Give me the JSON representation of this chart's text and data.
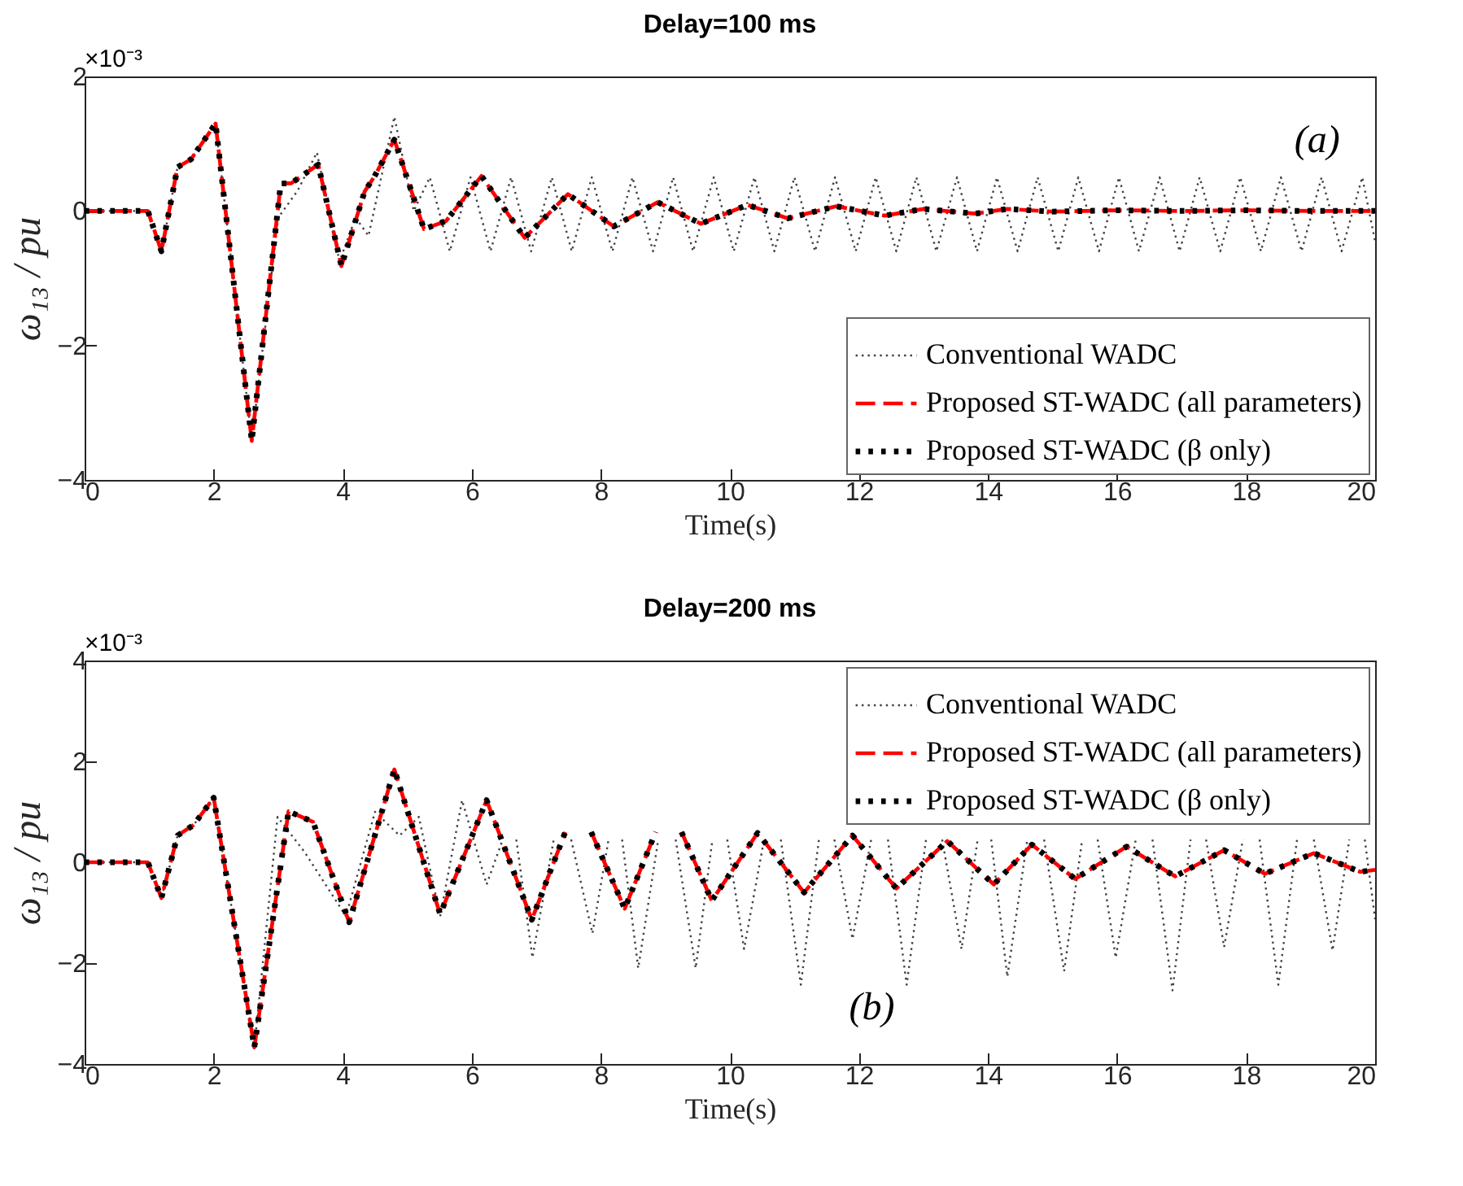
{
  "chart_data": [
    {
      "type": "line",
      "title": "Delay=100 ms",
      "xlabel": "Time(s)",
      "ylabel": "ω₁₃ / pu",
      "xlim": [
        0,
        20
      ],
      "xticks": [
        0,
        2,
        4,
        6,
        8,
        10,
        12,
        14,
        16,
        18,
        20
      ],
      "ylim": [
        -4,
        2
      ],
      "yticks": [
        -4,
        -2,
        0,
        2
      ],
      "legend": "bottom right",
      "annotations": [
        "×10⁻³",
        "(a)"
      ],
      "series": [
        {
          "name": "Conventional WADC",
          "color": "#404040",
          "line_style": "dotted",
          "x": [
            0,
            0.98,
            1.19,
            1.44,
            1.65,
            2.03,
            2.59,
            3.0,
            3.3,
            3.6,
            3.95,
            4.2,
            4.4,
            4.8,
            5.1,
            5.35,
            5.66,
            5.98,
            6.29,
            6.61,
            6.92,
            7.24,
            7.55,
            7.86,
            8.18,
            8.49,
            8.81,
            9.12,
            9.43,
            9.75,
            10.06,
            10.38,
            10.69,
            11.0,
            11.32,
            11.63,
            11.95,
            12.26,
            12.58,
            12.89,
            13.2,
            13.52,
            13.83,
            14.14,
            14.46,
            14.77,
            15.09,
            15.4,
            15.72,
            16.03,
            16.34,
            16.66,
            16.97,
            17.28,
            17.6,
            17.91,
            18.23,
            18.54,
            18.86,
            19.17,
            19.48,
            19.8,
            20
          ],
          "values": [
            0,
            0,
            -0.6,
            0.65,
            0.77,
            1.3,
            -3.42,
            -0.1,
            0.3,
            0.87,
            -0.75,
            -0.1,
            -0.37,
            1.4,
            0.0,
            0.5,
            -0.6,
            0.5,
            -0.6,
            0.5,
            -0.6,
            0.5,
            -0.6,
            0.5,
            -0.6,
            0.5,
            -0.6,
            0.5,
            -0.6,
            0.5,
            -0.6,
            0.5,
            -0.6,
            0.5,
            -0.6,
            0.5,
            -0.6,
            0.5,
            -0.6,
            0.5,
            -0.6,
            0.5,
            -0.6,
            0.5,
            -0.6,
            0.5,
            -0.6,
            0.5,
            -0.6,
            0.5,
            -0.6,
            0.5,
            -0.6,
            0.5,
            -0.6,
            0.5,
            -0.6,
            0.5,
            -0.6,
            0.5,
            -0.6,
            0.5,
            -0.45
          ]
        },
        {
          "name": "Proposed ST-WADC (all parameters)",
          "color": "#ff0000",
          "line_style": "dashed",
          "x": [
            0,
            0.98,
            1.19,
            1.44,
            1.65,
            2.03,
            2.59,
            3.04,
            3.2,
            3.62,
            3.98,
            4.34,
            4.49,
            4.8,
            5.26,
            5.6,
            6.15,
            6.82,
            7.49,
            8.2,
            8.88,
            9.55,
            10.27,
            10.9,
            11.65,
            12.4,
            13.0,
            13.8,
            14.3,
            15.0,
            16,
            17,
            18,
            19,
            20
          ],
          "values": [
            0,
            0,
            -0.6,
            0.65,
            0.77,
            1.3,
            -3.42,
            0.41,
            0.41,
            0.69,
            -0.82,
            0.29,
            0.51,
            1.06,
            -0.27,
            -0.15,
            0.52,
            -0.4,
            0.25,
            -0.23,
            0.13,
            -0.19,
            0.09,
            -0.11,
            0.07,
            -0.07,
            0.03,
            -0.04,
            0.03,
            -0.01,
            0.01,
            0,
            0.01,
            0,
            0
          ]
        },
        {
          "name": "Proposed ST-WADC (β only)",
          "color": "#000000",
          "line_style": "dotted",
          "x": [
            0,
            0.98,
            1.19,
            1.44,
            1.65,
            2.03,
            2.59,
            3.04,
            3.2,
            3.62,
            3.98,
            4.34,
            4.49,
            4.8,
            5.26,
            5.6,
            6.15,
            6.82,
            7.49,
            8.2,
            8.88,
            9.55,
            10.27,
            10.9,
            11.65,
            12.4,
            13.0,
            13.8,
            14.3,
            15.0,
            16,
            17,
            18,
            19,
            20
          ],
          "values": [
            0,
            0,
            -0.6,
            0.65,
            0.77,
            1.3,
            -3.42,
            0.41,
            0.41,
            0.69,
            -0.82,
            0.29,
            0.51,
            1.06,
            -0.27,
            -0.15,
            0.52,
            -0.4,
            0.25,
            -0.23,
            0.13,
            -0.19,
            0.09,
            -0.11,
            0.07,
            -0.07,
            0.03,
            -0.04,
            0.03,
            -0.01,
            0.01,
            0,
            0.01,
            0,
            0
          ]
        }
      ]
    },
    {
      "type": "line",
      "title": "Delay=200 ms",
      "xlabel": "Time(s)",
      "ylabel": "ω₁₃ / pu",
      "xlim": [
        0,
        20
      ],
      "xticks": [
        0,
        2,
        4,
        6,
        8,
        10,
        12,
        14,
        16,
        18,
        20
      ],
      "ylim": [
        -4,
        4
      ],
      "yticks": [
        -4,
        -2,
        0,
        2,
        4
      ],
      "legend": "top right",
      "annotations": [
        "×10⁻³",
        "(b)"
      ],
      "series": [
        {
          "name": "Conventional WADC",
          "color": "#404040",
          "line_style": "dotted",
          "x": [
            0,
            0.98,
            1.19,
            1.44,
            1.69,
            2.0,
            2.63,
            2.99,
            3.41,
            4.05,
            4.5,
            4.88,
            5.18,
            5.51,
            5.85,
            6.23,
            6.48,
            6.59,
            6.69,
            6.94,
            7.27,
            7.41,
            7.54,
            7.87,
            8.12,
            8.23,
            8.33,
            8.58,
            8.89,
            9.03,
            9.16,
            9.47,
            9.73,
            9.85,
            9.96,
            10.22,
            10.53,
            10.66,
            10.79,
            11.1,
            11.38,
            11.5,
            11.62,
            11.9,
            12.19,
            12.32,
            12.45,
            12.74,
            13.04,
            13.17,
            13.29,
            13.59,
            13.84,
            13.95,
            14.05,
            14.3,
            14.61,
            14.74,
            14.87,
            15.18,
            15.46,
            15.58,
            15.7,
            15.98,
            16.29,
            16.42,
            16.55,
            16.86,
            17.14,
            17.26,
            17.38,
            17.66,
            17.95,
            18.08,
            18.21,
            18.5,
            18.79,
            18.92,
            19.05,
            19.34,
            19.6,
            19.72,
            19.84,
            20
          ],
          "values": [
            0,
            0,
            -0.71,
            0.53,
            0.74,
            1.28,
            -3.67,
            0.9,
            0.2,
            -1.07,
            1.0,
            0.53,
            0.9,
            -1.07,
            1.23,
            -0.44,
            0.45,
            null,
            0.45,
            -1.89,
            0.45,
            null,
            0.45,
            -1.41,
            0.45,
            null,
            0.45,
            -2.1,
            0.45,
            null,
            0.45,
            -2.1,
            0.45,
            null,
            0.45,
            -1.72,
            0.45,
            null,
            0.45,
            -2.43,
            0.45,
            null,
            0.45,
            -1.52,
            0.45,
            null,
            0.45,
            -2.43,
            0.45,
            null,
            0.45,
            -1.72,
            0.45,
            null,
            0.45,
            -2.27,
            0.45,
            null,
            0.45,
            -2.16,
            0.45,
            null,
            0.45,
            -1.89,
            0.45,
            null,
            0.45,
            -2.54,
            0.45,
            null,
            0.45,
            -1.68,
            0.45,
            null,
            0.45,
            -2.43,
            0.45,
            null,
            0.45,
            -1.75,
            0.45,
            null,
            0.45,
            -1.13
          ]
        },
        {
          "name": "Proposed ST-WADC (all parameters)",
          "color": "#ff0000",
          "line_style": "dashed",
          "x": [
            0,
            0.98,
            1.19,
            1.44,
            1.69,
            2.0,
            2.63,
            3.16,
            3.54,
            4.1,
            4.8,
            5.51,
            6.23,
            6.93,
            7.45,
            7.65,
            7.85,
            8.37,
            8.85,
            9.05,
            9.25,
            9.72,
            10.43,
            11.15,
            11.9,
            12.58,
            13.37,
            14.09,
            14.68,
            15.35,
            16.15,
            16.9,
            17.66,
            18.29,
            19.05,
            19.77,
            20
          ],
          "values": [
            0,
            0,
            -0.71,
            0.53,
            0.74,
            1.28,
            -3.67,
            1.01,
            0.8,
            -1.19,
            1.84,
            -1.03,
            1.23,
            -1.14,
            0.6,
            null,
            0.6,
            -0.92,
            0.6,
            null,
            0.6,
            -0.76,
            0.58,
            -0.6,
            0.53,
            -0.52,
            0.42,
            -0.44,
            0.35,
            -0.33,
            0.31,
            -0.28,
            0.24,
            -0.23,
            0.18,
            -0.19,
            -0.15
          ]
        },
        {
          "name": "Proposed ST-WADC (β only)",
          "color": "#000000",
          "line_style": "dotted",
          "x": [
            0,
            0.98,
            1.19,
            1.44,
            1.69,
            2.0,
            2.63,
            3.16,
            3.54,
            4.1,
            4.8,
            5.51,
            6.23,
            6.93,
            7.45,
            7.65,
            7.85,
            8.37,
            8.85,
            9.05,
            9.25,
            9.72,
            10.43,
            11.15,
            11.9,
            12.58,
            13.37,
            14.09,
            14.68,
            15.35,
            16.15,
            16.9,
            17.66,
            18.29,
            19.05,
            19.77,
            20
          ],
          "values": [
            0,
            0,
            -0.71,
            0.53,
            0.74,
            1.28,
            -3.67,
            1.01,
            0.8,
            -1.19,
            1.84,
            -1.03,
            1.23,
            -1.14,
            0.6,
            null,
            0.6,
            -0.92,
            0.6,
            null,
            0.6,
            -0.76,
            0.58,
            -0.6,
            0.53,
            -0.52,
            0.42,
            -0.44,
            0.35,
            -0.33,
            0.31,
            -0.28,
            0.24,
            -0.23,
            0.18,
            -0.19,
            -0.15
          ]
        }
      ]
    }
  ]
}
